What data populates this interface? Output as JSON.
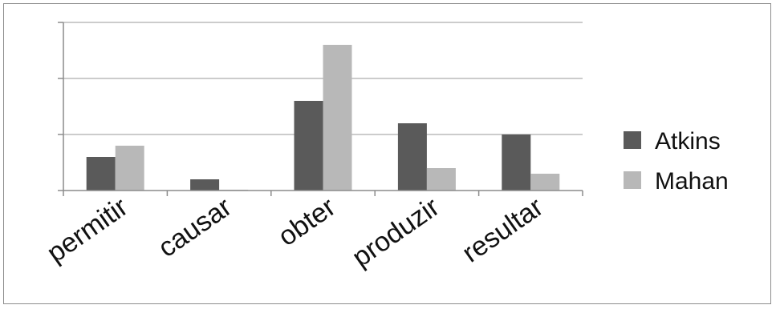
{
  "chart_data": {
    "type": "bar",
    "categories": [
      "permitir",
      "causar",
      "obter",
      "produzir",
      "resultar"
    ],
    "series": [
      {
        "name": "Atkins",
        "values": [
          6,
          2,
          16,
          12,
          10
        ],
        "color": "#5a5a5a"
      },
      {
        "name": "Mahan",
        "values": [
          8,
          0.15,
          26,
          4,
          3
        ],
        "color": "#b8b8b8"
      }
    ],
    "ylim": [
      0,
      30
    ],
    "yticks": [
      0,
      10,
      20,
      30
    ],
    "y_tick_labels_shown": false,
    "grid": true,
    "legend_position": "right"
  }
}
